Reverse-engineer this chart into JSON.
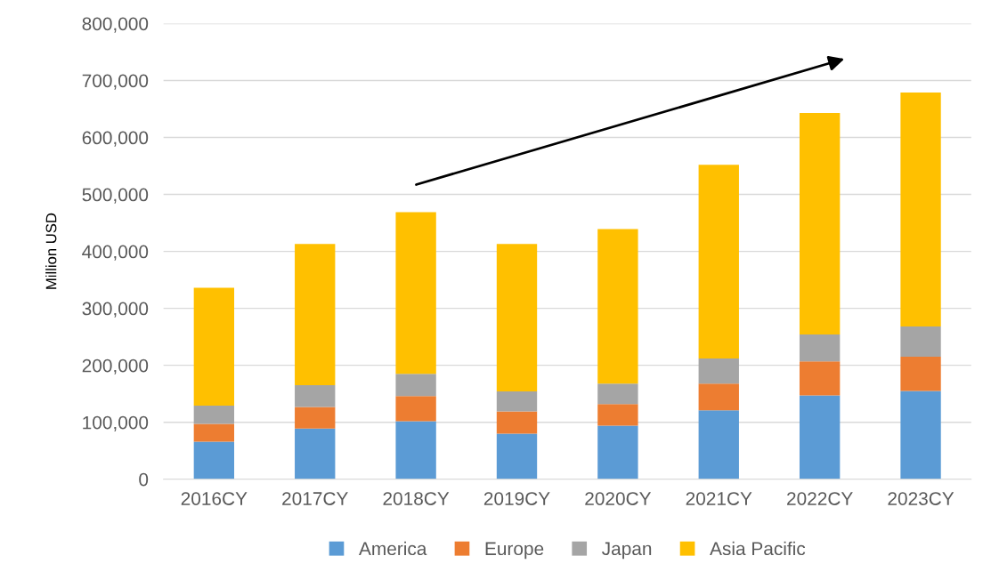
{
  "chart_data": {
    "type": "bar",
    "stacked": true,
    "ylabel": "Million USD",
    "categories": [
      "2016CY",
      "2017CY",
      "2018CY",
      "2019CY",
      "2020CY",
      "2021CY",
      "2022CY",
      "2023CY"
    ],
    "series": [
      {
        "name": "America",
        "color": "#5b9bd5",
        "values": [
          66000,
          89000,
          102000,
          80000,
          94000,
          121000,
          147000,
          155000
        ]
      },
      {
        "name": "Europe",
        "color": "#ed7d31",
        "values": [
          31000,
          38000,
          44000,
          39000,
          38000,
          47000,
          60000,
          60000
        ]
      },
      {
        "name": "Japan",
        "color": "#a5a5a5",
        "values": [
          32000,
          38000,
          39000,
          35000,
          36000,
          44000,
          47000,
          53000
        ]
      },
      {
        "name": "Asia Pacific",
        "color": "#ffc000",
        "values": [
          207000,
          248000,
          284000,
          259000,
          271000,
          340000,
          389000,
          411000
        ]
      }
    ],
    "ylim": [
      0,
      800000
    ],
    "yticks": [
      0,
      {
        "value": 100000,
        "label": "100,000"
      },
      {
        "value": 200000,
        "label": "200,000"
      },
      {
        "value": 300000,
        "label": "300,000"
      },
      {
        "value": 400000,
        "label": "400,000"
      },
      {
        "value": 500000,
        "label": "500,000"
      },
      {
        "value": 600000,
        "label": "600,000"
      },
      {
        "value": 700000,
        "label": "700,000"
      },
      {
        "value": 800000,
        "label": "800,000"
      }
    ],
    "grid": "y",
    "legend": "bottom"
  }
}
